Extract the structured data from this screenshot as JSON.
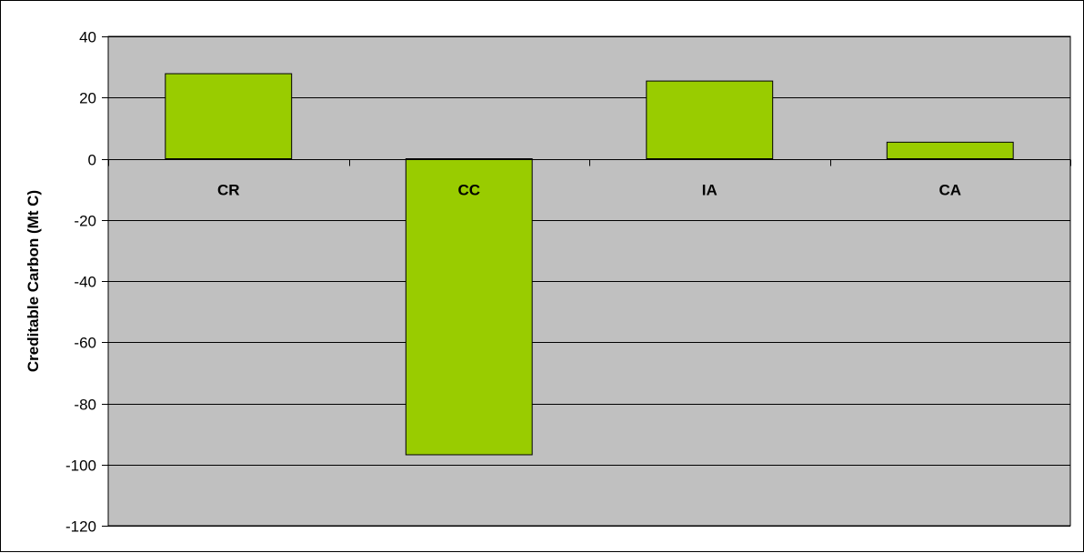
{
  "chart_data": {
    "type": "bar",
    "categories": [
      "CR",
      "CC",
      "IA",
      "CA"
    ],
    "values": [
      27.8,
      -96.8,
      25.4,
      5.4
    ],
    "title": "",
    "xlabel": "",
    "ylabel": "Creditable Carbon (Mt C)",
    "ylim": [
      -120,
      40
    ],
    "yticks": [
      "40",
      "20",
      "0",
      "-20",
      "-40",
      "-60",
      "-80",
      "-100",
      "-120"
    ],
    "grid": true,
    "legend": "none",
    "colors": {
      "bar": "#99cc00",
      "plot_background": "#c0c0c0",
      "gridline": "#000000",
      "outline": "#000000"
    }
  }
}
